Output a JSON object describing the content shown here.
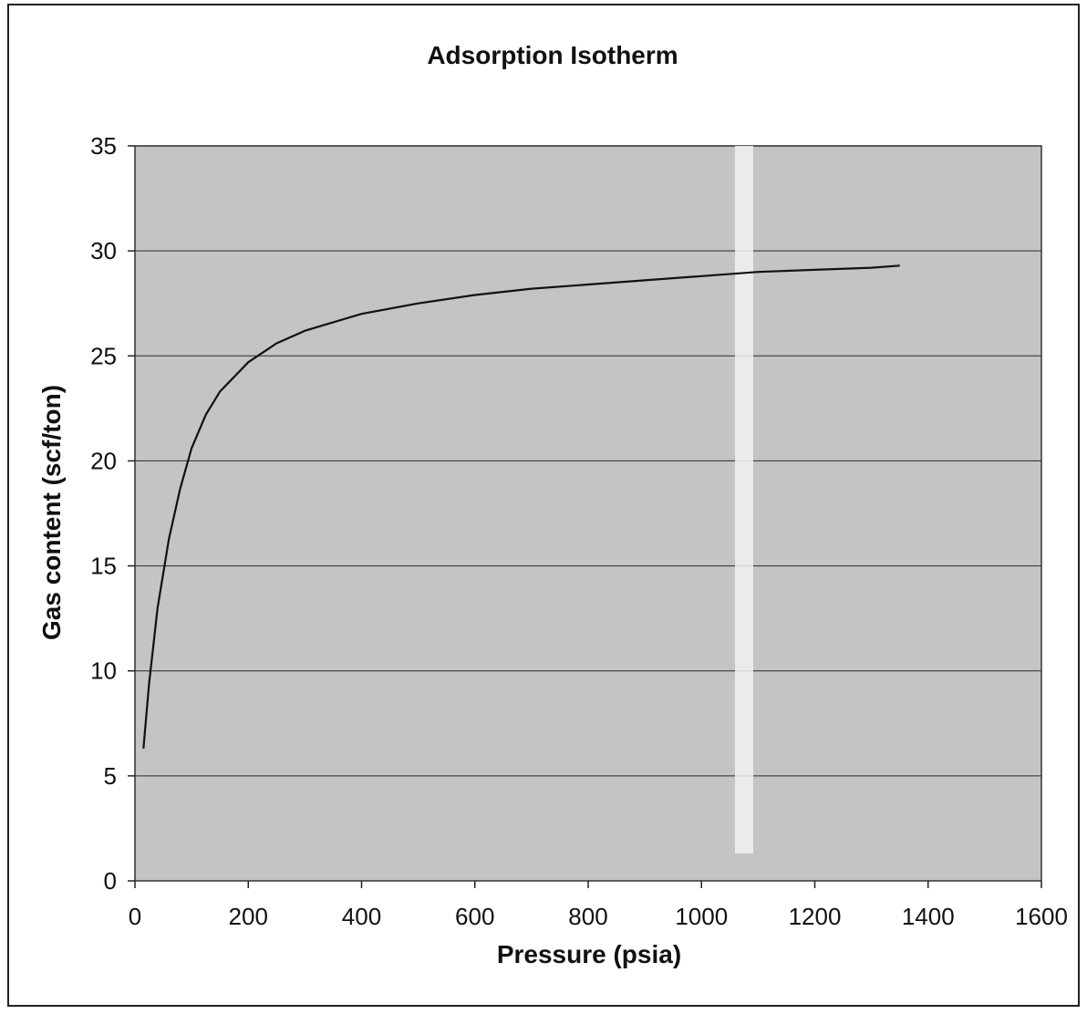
{
  "chart_data": {
    "type": "line",
    "title": "Adsorption Isotherm",
    "xlabel": "Pressure (psia)",
    "ylabel": "Gas content (scf/ton)",
    "xlim": [
      0,
      1600
    ],
    "ylim": [
      0,
      35
    ],
    "x_ticks": [
      "0",
      "200",
      "400",
      "600",
      "800",
      "1000",
      "1200",
      "1400",
      "1600"
    ],
    "y_ticks": [
      "0",
      "5",
      "10",
      "15",
      "20",
      "25",
      "30",
      "35"
    ],
    "grid": "horizontal",
    "legend": "none",
    "series": [
      {
        "x": [
          15,
          25,
          40,
          60,
          80,
          100,
          125,
          150,
          200,
          250,
          300,
          350,
          400,
          500,
          600,
          700,
          800,
          900,
          1000,
          1100,
          1200,
          1300,
          1350
        ],
        "y": [
          6.3,
          9.4,
          13.0,
          16.3,
          18.7,
          20.6,
          22.2,
          23.3,
          24.7,
          25.6,
          26.2,
          26.6,
          27.0,
          27.5,
          27.9,
          28.2,
          28.4,
          28.6,
          28.8,
          29.0,
          29.1,
          29.2,
          29.3
        ]
      }
    ],
    "colors": {
      "plot_area": "#c4c4c4",
      "gridline": "#2a2a2a",
      "curve": "#111111",
      "artifact_streak": "#f2f2f2"
    }
  }
}
